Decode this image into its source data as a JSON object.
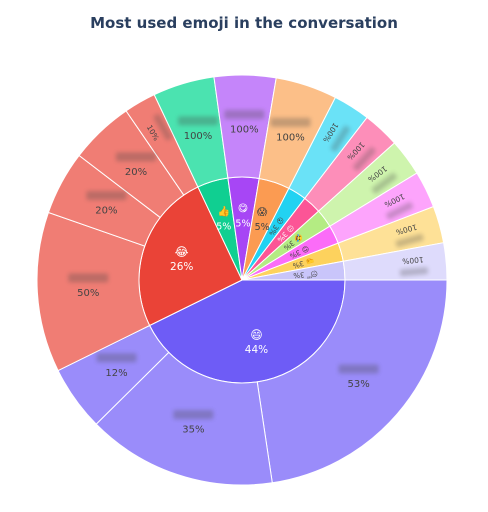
{
  "chart_data": {
    "type": "sunburst",
    "title": "Most used emoji in the conversation",
    "inner": [
      {
        "emoji": "😄",
        "percent": "44%",
        "value": 44,
        "color": "#6e5cf6",
        "children": [
          {
            "name": "",
            "percent": "53%",
            "value": 53,
            "color": "#9a8cfa"
          },
          {
            "name": "",
            "percent": "35%",
            "value": 35,
            "color": "#9a8cfa"
          },
          {
            "name": "",
            "percent": "12%",
            "value": 12,
            "color": "#9a8cfa"
          }
        ]
      },
      {
        "emoji": "😂",
        "percent": "26%",
        "value": 26,
        "color": "#ea4337",
        "children": [
          {
            "name": "",
            "percent": "50%",
            "value": 50,
            "color": "#f07d74"
          },
          {
            "name": "",
            "percent": "20%",
            "value": 20,
            "color": "#f07d74"
          },
          {
            "name": "",
            "percent": "20%",
            "value": 20,
            "color": "#f07d74"
          },
          {
            "name": "",
            "percent": "10%",
            "value": 10,
            "color": "#f07d74"
          }
        ]
      },
      {
        "emoji": "👍",
        "percent": "5%",
        "value": 5,
        "color": "#10cf91",
        "children": [
          {
            "name": "",
            "percent": "100%",
            "value": 100,
            "color": "#4be3b0"
          }
        ]
      },
      {
        "emoji": "😋",
        "percent": "5%",
        "value": 5,
        "color": "#a746f5",
        "children": [
          {
            "name": "",
            "percent": "100%",
            "value": 100,
            "color": "#c585fa"
          }
        ]
      },
      {
        "emoji": "😱",
        "percent": "5%",
        "value": 5,
        "color": "#fb9b52",
        "children": [
          {
            "name": "",
            "percent": "100%",
            "value": 100,
            "color": "#fcbf88"
          }
        ]
      },
      {
        "emoji": "😮",
        "percent": "3%",
        "value": 3,
        "color": "#22d2f2",
        "children": [
          {
            "name": "",
            "percent": "100%",
            "value": 100,
            "color": "#6ae2f7"
          }
        ]
      },
      {
        "emoji": "😉",
        "percent": "3%",
        "value": 3,
        "color": "#fc5596",
        "children": [
          {
            "name": "",
            "percent": "100%",
            "value": 100,
            "color": "#fd8eb9"
          }
        ]
      },
      {
        "emoji": "🤣",
        "percent": "3%",
        "value": 3,
        "color": "#b4ec83",
        "children": [
          {
            "name": "",
            "percent": "100%",
            "value": 100,
            "color": "#cef4ad"
          }
        ]
      },
      {
        "emoji": "😍",
        "percent": "3%",
        "value": 3,
        "color": "#fb6cf8",
        "children": [
          {
            "name": "",
            "percent": "100%",
            "value": 100,
            "color": "#fda4fc"
          }
        ]
      },
      {
        "emoji": "🤜",
        "percent": "3%",
        "value": 3,
        "color": "#fdd25d",
        "children": [
          {
            "name": "",
            "percent": "100%",
            "value": 100,
            "color": "#fee197"
          }
        ]
      },
      {
        "emoji": "😴",
        "percent": "3%",
        "value": 3,
        "color": "#c9c5fa",
        "children": [
          {
            "name": "",
            "percent": "100%",
            "value": 100,
            "color": "#dedbfc"
          }
        ]
      }
    ]
  }
}
